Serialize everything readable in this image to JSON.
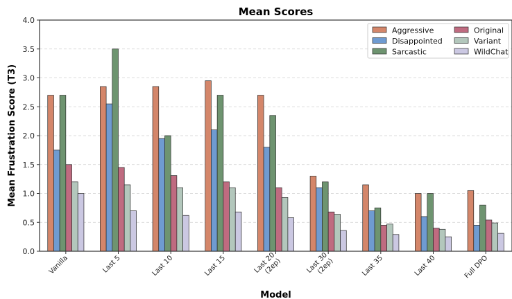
{
  "chart_data": {
    "type": "bar",
    "title": "Mean Scores",
    "xlabel": "Model",
    "ylabel": "Mean Frustration Score (T3)",
    "ylim": [
      0,
      4.0
    ],
    "yticks": [
      "0.0",
      "0.5",
      "1.0",
      "1.5",
      "2.0",
      "2.5",
      "3.0",
      "3.5",
      "4.0"
    ],
    "grid": "horizontal dashed",
    "legend_position": "top-right",
    "categories": [
      [
        "Vanilla"
      ],
      [
        "Last 5"
      ],
      [
        "Last 10"
      ],
      [
        "Last 15"
      ],
      [
        "Last 20",
        "(2ep)"
      ],
      [
        "Last 30",
        "(2ep)"
      ],
      [
        "Last 35"
      ],
      [
        "Last 40"
      ],
      [
        "Full DPO"
      ]
    ],
    "series": [
      {
        "name": "Aggressive",
        "color": "#d4866a",
        "values": [
          2.7,
          2.85,
          2.85,
          2.95,
          2.7,
          1.3,
          1.15,
          1.0,
          1.05
        ]
      },
      {
        "name": "Disappointed",
        "color": "#6f9bd1",
        "values": [
          1.75,
          2.55,
          1.95,
          2.1,
          1.8,
          1.1,
          0.7,
          0.6,
          0.45
        ]
      },
      {
        "name": "Sarcastic",
        "color": "#6e9470",
        "values": [
          2.7,
          3.5,
          2.0,
          2.7,
          2.35,
          1.2,
          0.75,
          1.0,
          0.8
        ]
      },
      {
        "name": "Original",
        "color": "#bf6b80",
        "values": [
          1.5,
          1.45,
          1.31,
          1.2,
          1.1,
          0.68,
          0.45,
          0.4,
          0.54
        ]
      },
      {
        "name": "Variant",
        "color": "#b3c7bc",
        "values": [
          1.2,
          1.15,
          1.1,
          1.1,
          0.93,
          0.64,
          0.47,
          0.38,
          0.49
        ]
      },
      {
        "name": "WildChat",
        "color": "#cbc8e2",
        "values": [
          1.0,
          0.7,
          0.62,
          0.68,
          0.58,
          0.36,
          0.29,
          0.25,
          0.31
        ]
      }
    ]
  }
}
